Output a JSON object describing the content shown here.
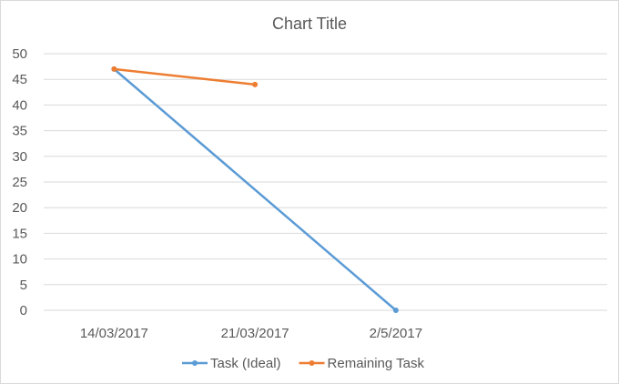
{
  "chart_data": {
    "type": "line",
    "title": "Chart Title",
    "categories": [
      "14/03/2017",
      "21/03/2017",
      "2/5/2017",
      ""
    ],
    "series": [
      {
        "name": "Task (Ideal)",
        "color": "#5b9bd5",
        "values": [
          47,
          null,
          0,
          null
        ]
      },
      {
        "name": "Remaining Task",
        "color": "#ed7d31",
        "values": [
          47,
          44,
          null,
          null
        ]
      }
    ],
    "ylim": [
      0,
      50
    ],
    "yticks": [
      0,
      5,
      10,
      15,
      20,
      25,
      30,
      35,
      40,
      45,
      50
    ],
    "xlabel": "",
    "ylabel": "",
    "grid": true,
    "legend_position": "bottom"
  }
}
